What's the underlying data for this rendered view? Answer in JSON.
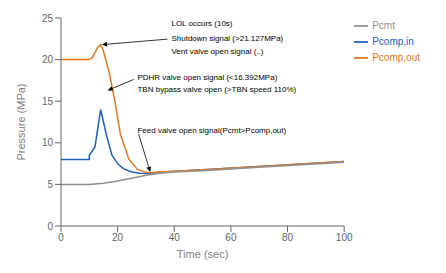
{
  "chart_data": {
    "type": "line",
    "xlabel": "Time (sec)",
    "ylabel": "Pressure (MPa)",
    "xlim": [
      0,
      100
    ],
    "ylim": [
      0,
      25
    ],
    "xticks": [
      0,
      20,
      40,
      60,
      80,
      100
    ],
    "yticks": [
      0,
      5,
      10,
      15,
      20,
      25
    ],
    "grid": false,
    "legend": "upper right",
    "series": [
      {
        "name": "Pcomp,in",
        "color": "#2060c0",
        "x": [
          0,
          10,
          10,
          12,
          14,
          16,
          18,
          20,
          22,
          25,
          28,
          31,
          35,
          50,
          70,
          100
        ],
        "values": [
          8.0,
          8.0,
          8.5,
          9.5,
          14.0,
          11.0,
          8.5,
          7.5,
          6.9,
          6.5,
          6.35,
          6.3,
          6.45,
          6.75,
          7.15,
          7.75
        ]
      },
      {
        "name": "Pcomp,out",
        "color": "#e07820",
        "x": [
          0,
          10,
          11,
          13,
          14,
          15,
          17,
          19,
          21,
          24,
          27,
          30,
          31,
          35,
          50,
          70,
          100
        ],
        "values": [
          20.0,
          20.0,
          20.2,
          21.5,
          21.8,
          21.0,
          18.5,
          15.0,
          11.0,
          8.0,
          6.8,
          6.45,
          6.4,
          6.5,
          6.75,
          7.15,
          7.75
        ]
      },
      {
        "name": "Pcmt",
        "color": "#909090",
        "x": [
          0,
          10,
          15,
          20,
          25,
          30,
          35,
          40,
          50,
          70,
          100
        ],
        "values": [
          5.0,
          5.0,
          5.15,
          5.4,
          5.75,
          6.1,
          6.35,
          6.5,
          6.65,
          7.05,
          7.65
        ]
      }
    ],
    "annotations": [
      {
        "text": "LOL occurs (10s)",
        "x": 39,
        "y": 24.3
      },
      {
        "text": "Shutdown signal (>21.127MPa)",
        "x": 39,
        "y": 22.5,
        "arrow_x": 14.5,
        "arrow_y": 21.8
      },
      {
        "text": "Vent valve open signal (..)",
        "x": 39,
        "y": 21.0
      },
      {
        "text": "PDHR valve open signal (<16.392MPa)",
        "x": 27,
        "y": 17.8,
        "arrow_x": 16.5,
        "arrow_y": 16.3
      },
      {
        "text": "TBN bypass valve open (>TBN speed  110%)",
        "x": 27,
        "y": 16.4
      },
      {
        "text": "Feed valve open signal(Pcmt>Pcomp,out)",
        "x": 27,
        "y": 11.5,
        "arrow_x": 31.5,
        "arrow_y": 6.5
      }
    ]
  }
}
